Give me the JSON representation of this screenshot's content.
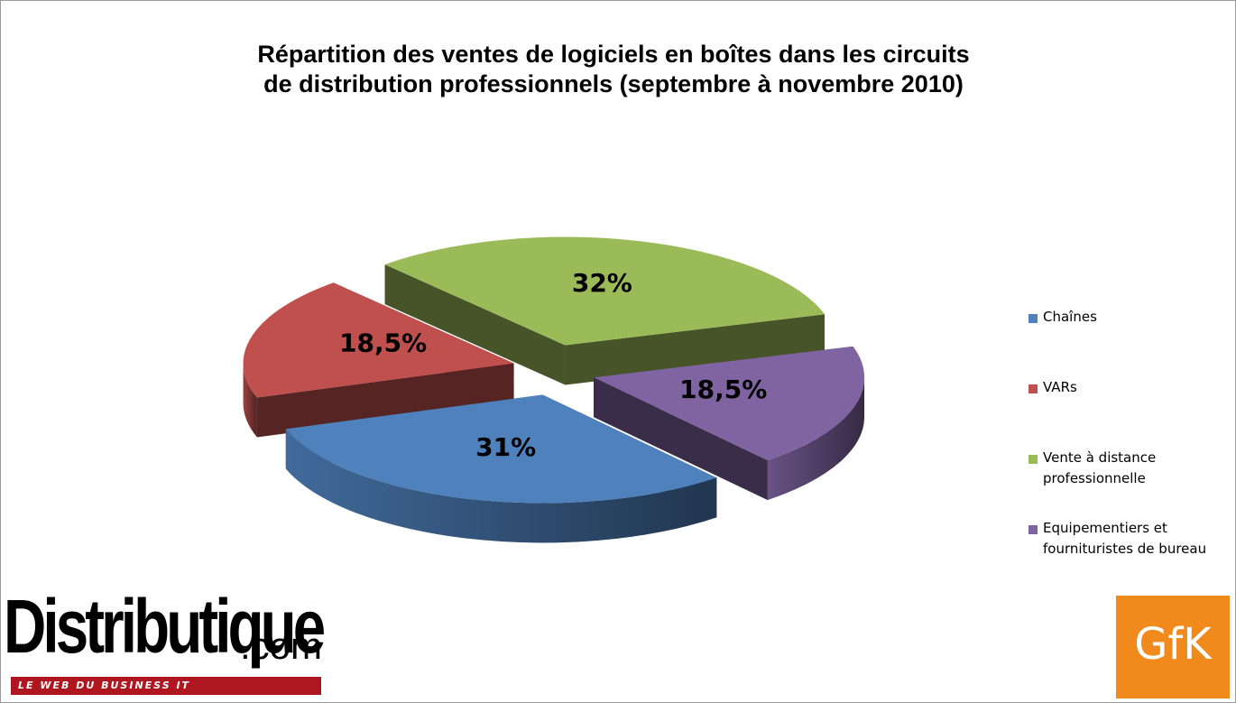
{
  "chart_data": {
    "type": "pie",
    "title": "Répartition des ventes de logiciels en boîtes dans les circuits de distribution professionnels (septembre à novembre 2010)",
    "title_lines": [
      "Répartition des ventes de logiciels en boîtes dans les circuits",
      "de distribution professionnels (septembre à novembre 2010)"
    ],
    "unit": "%",
    "style": "3d-exploded",
    "legend_position": "right",
    "slices": [
      {
        "name": "Chaînes",
        "value": 31,
        "label": "31%",
        "color": "#4f81bd"
      },
      {
        "name": "VARs",
        "value": 18.5,
        "label": "18,5%",
        "color": "#c0504d"
      },
      {
        "name": "Vente à distance professionnelle",
        "value": 32,
        "label": "32%",
        "color": "#9bbb59"
      },
      {
        "name": "Equipementiers et fournituristes de bureau",
        "value": 18.5,
        "label": "18,5%",
        "color": "#8064a2"
      }
    ],
    "legend": [
      {
        "lines": [
          "Chaînes"
        ],
        "color": "#4f81bd"
      },
      {
        "lines": [
          "VARs"
        ],
        "color": "#c0504d"
      },
      {
        "lines": [
          "Vente à distance",
          "professionnelle"
        ],
        "color": "#9bbb59"
      },
      {
        "lines": [
          "Equipementiers et",
          "fournituristes de bureau"
        ],
        "color": "#8064a2"
      }
    ]
  },
  "logos": {
    "distributique_main": "Distributique",
    "distributique_domain": ".com",
    "distributique_tagline": "LE WEB DU BUSINESS IT",
    "gfk": "GfK",
    "gfk_color": "#f08a1c",
    "distributique_bar_color": "#b01620"
  }
}
